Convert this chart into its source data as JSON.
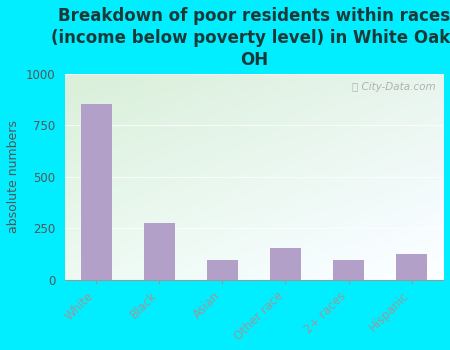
{
  "categories": [
    "White",
    "Black",
    "Asian",
    "Other race",
    "2+ races",
    "Hispanic"
  ],
  "values": [
    855,
    275,
    95,
    155,
    95,
    125
  ],
  "bar_color": "#b3a0c8",
  "title": "Breakdown of poor residents within races\n(income below poverty level) in White Oak,\nOH",
  "ylabel": "absolute numbers",
  "ylim": [
    0,
    1000
  ],
  "yticks": [
    0,
    250,
    500,
    750,
    1000
  ],
  "outer_bg": "#00eeff",
  "title_fontsize": 12,
  "title_color": "#1a3a3a",
  "ylabel_fontsize": 9,
  "tick_fontsize": 8.5,
  "tick_color": "#555555",
  "watermark": "City-Data.com",
  "plot_left_color": "#d4ecd4",
  "plot_right_color": "#f8fff8",
  "grid_color": "#e0e8e0"
}
